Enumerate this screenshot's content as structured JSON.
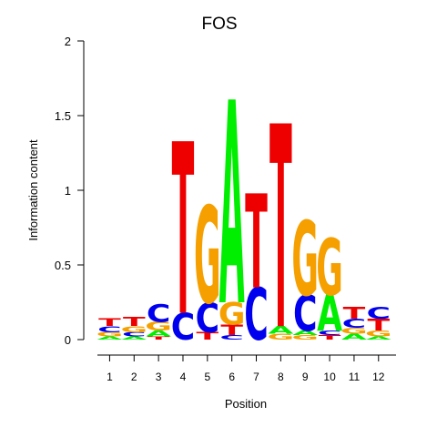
{
  "chart_data": {
    "type": "sequence-logo",
    "title": "FOS",
    "xlabel": "Position",
    "ylabel": "Information content",
    "ylim": [
      0,
      2
    ],
    "yticks": [
      "0",
      "0.5",
      "1",
      "1.5",
      "2"
    ],
    "positions": [
      "1",
      "2",
      "3",
      "4",
      "5",
      "6",
      "7",
      "8",
      "9",
      "10",
      "11",
      "12"
    ],
    "colors": {
      "A": "#00ee00",
      "C": "#0000ee",
      "G": "#f5a000",
      "T": "#ee0000"
    },
    "stacks": [
      [
        {
          "base": "A",
          "height": 0.02
        },
        {
          "base": "G",
          "height": 0.03
        },
        {
          "base": "C",
          "height": 0.04
        },
        {
          "base": "T",
          "height": 0.05
        }
      ],
      [
        {
          "base": "A",
          "height": 0.02
        },
        {
          "base": "C",
          "height": 0.03
        },
        {
          "base": "G",
          "height": 0.04
        },
        {
          "base": "T",
          "height": 0.06
        }
      ],
      [
        {
          "base": "T",
          "height": 0.02
        },
        {
          "base": "A",
          "height": 0.04
        },
        {
          "base": "G",
          "height": 0.06
        },
        {
          "base": "C",
          "height": 0.12
        }
      ],
      [
        {
          "base": "C",
          "height": 0.18
        },
        {
          "base": "T",
          "height": 1.15
        }
      ],
      [
        {
          "base": "T",
          "height": 0.05
        },
        {
          "base": "C",
          "height": 0.2
        },
        {
          "base": "G",
          "height": 0.65
        }
      ],
      [
        {
          "base": "C",
          "height": 0.03
        },
        {
          "base": "T",
          "height": 0.07
        },
        {
          "base": "G",
          "height": 0.15
        },
        {
          "base": "A",
          "height": 1.36
        }
      ],
      [
        {
          "base": "C",
          "height": 0.35
        },
        {
          "base": "T",
          "height": 0.63
        }
      ],
      [
        {
          "base": "G",
          "height": 0.04
        },
        {
          "base": "A",
          "height": 0.05
        },
        {
          "base": "T",
          "height": 1.36
        }
      ],
      [
        {
          "base": "G",
          "height": 0.03
        },
        {
          "base": "A",
          "height": 0.03
        },
        {
          "base": "C",
          "height": 0.24
        },
        {
          "base": "G",
          "height": 0.5
        }
      ],
      [
        {
          "base": "T",
          "height": 0.03
        },
        {
          "base": "C",
          "height": 0.03
        },
        {
          "base": "A",
          "height": 0.24
        },
        {
          "base": "G",
          "height": 0.38
        }
      ],
      [
        {
          "base": "A",
          "height": 0.04
        },
        {
          "base": "G",
          "height": 0.04
        },
        {
          "base": "C",
          "height": 0.06
        },
        {
          "base": "T",
          "height": 0.08
        }
      ],
      [
        {
          "base": "A",
          "height": 0.02
        },
        {
          "base": "G",
          "height": 0.04
        },
        {
          "base": "T",
          "height": 0.08
        },
        {
          "base": "C",
          "height": 0.08
        }
      ]
    ]
  }
}
